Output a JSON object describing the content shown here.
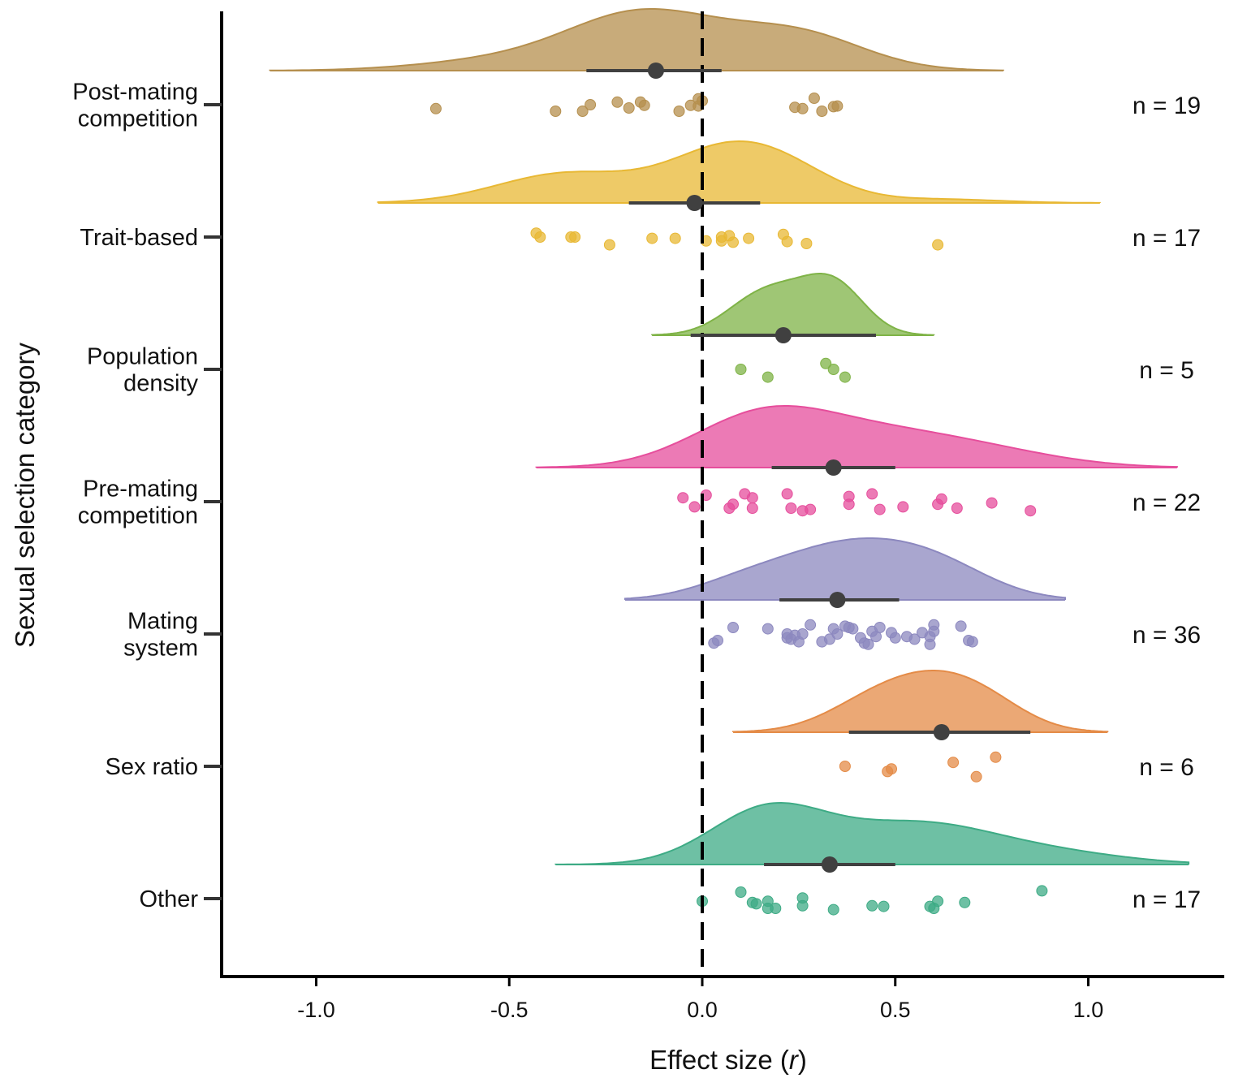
{
  "chart_data": {
    "type": "raincloud",
    "xlabel_main": "Effect size (",
    "xlabel_italic": "r",
    "xlabel_close": ")",
    "ylabel": "Sexual selection category",
    "xlim": [
      -1.25,
      1.38
    ],
    "x_ticks": [
      {
        "value": -1.0,
        "label": "-1.0"
      },
      {
        "value": -0.5,
        "label": "-0.5"
      },
      {
        "value": 0.0,
        "label": "0.0"
      },
      {
        "value": 0.5,
        "label": "0.5"
      },
      {
        "value": 1.0,
        "label": "1.0"
      }
    ],
    "reference_line": {
      "x": 0,
      "style": "dashed"
    },
    "categories": [
      {
        "label_lines": [
          "Post-mating",
          "competition"
        ],
        "n_label": "n = 19",
        "color": "#b58f4e",
        "mean": -0.12,
        "ci": [
          -0.3,
          0.05
        ],
        "density_range": [
          -1.12,
          0.78
        ],
        "density_peaks": [
          [
            -0.15,
            1.0,
            0.2
          ],
          [
            0.25,
            0.6,
            0.17
          ],
          [
            -0.55,
            0.15,
            0.2
          ]
        ],
        "points": [
          [
            -0.69,
            0.3
          ],
          [
            -0.38,
            0.5
          ],
          [
            -0.31,
            0.5
          ],
          [
            -0.29,
            0.0
          ],
          [
            -0.22,
            -0.2
          ],
          [
            -0.19,
            0.25
          ],
          [
            -0.16,
            -0.2
          ],
          [
            -0.15,
            0.05
          ],
          [
            -0.06,
            0.5
          ],
          [
            -0.03,
            0.05
          ],
          [
            -0.01,
            0.1
          ],
          [
            -0.01,
            -0.45
          ],
          [
            0.0,
            -0.3
          ],
          [
            0.24,
            0.2
          ],
          [
            0.26,
            0.3
          ],
          [
            0.29,
            -0.5
          ],
          [
            0.31,
            0.5
          ],
          [
            0.34,
            0.15
          ],
          [
            0.35,
            0.1
          ]
        ]
      },
      {
        "label_lines": [
          "Trait-based"
        ],
        "n_label": "n = 17",
        "color": "#e8b834",
        "mean": -0.02,
        "ci": [
          -0.19,
          0.15
        ],
        "density_range": [
          -0.84,
          1.03
        ],
        "density_peaks": [
          [
            -0.35,
            0.65,
            0.18
          ],
          [
            0.05,
            1.0,
            0.15
          ],
          [
            0.22,
            0.55,
            0.14
          ],
          [
            0.62,
            0.08,
            0.15
          ]
        ],
        "points": [
          [
            -0.43,
            -0.3
          ],
          [
            -0.42,
            0.0
          ],
          [
            -0.34,
            0.0
          ],
          [
            -0.33,
            0.0
          ],
          [
            -0.24,
            0.6
          ],
          [
            -0.13,
            0.1
          ],
          [
            -0.07,
            0.1
          ],
          [
            0.01,
            0.3
          ],
          [
            0.05,
            0.0
          ],
          [
            0.05,
            0.3
          ],
          [
            0.07,
            -0.1
          ],
          [
            0.08,
            0.4
          ],
          [
            0.12,
            0.1
          ],
          [
            0.21,
            -0.2
          ],
          [
            0.22,
            0.35
          ],
          [
            0.27,
            0.5
          ],
          [
            0.61,
            0.6
          ]
        ]
      },
      {
        "label_lines": [
          "Population",
          "density"
        ],
        "n_label": "n = 5",
        "color": "#7fb347",
        "mean": 0.21,
        "ci": [
          -0.03,
          0.45
        ],
        "density_range": [
          -0.13,
          0.6
        ],
        "density_peaks": [
          [
            0.14,
            0.62,
            0.09
          ],
          [
            0.34,
            1.0,
            0.08
          ],
          [
            0.22,
            0.35,
            0.08
          ]
        ],
        "points": [
          [
            0.1,
            0.0
          ],
          [
            0.17,
            0.6
          ],
          [
            0.32,
            -0.45
          ],
          [
            0.34,
            0.0
          ],
          [
            0.37,
            0.6
          ]
        ]
      },
      {
        "label_lines": [
          "Pre-mating",
          "competition"
        ],
        "n_label": "n = 22",
        "color": "#e64e9c",
        "mean": 0.34,
        "ci": [
          0.18,
          0.5
        ],
        "density_range": [
          -0.43,
          1.23
        ],
        "density_peaks": [
          [
            0.15,
            1.0,
            0.18
          ],
          [
            0.45,
            0.65,
            0.22
          ],
          [
            0.75,
            0.25,
            0.2
          ]
        ],
        "points": [
          [
            -0.05,
            -0.3
          ],
          [
            -0.02,
            0.4
          ],
          [
            0.01,
            -0.5
          ],
          [
            0.07,
            0.5
          ],
          [
            0.08,
            0.2
          ],
          [
            0.11,
            -0.6
          ],
          [
            0.13,
            0.5
          ],
          [
            0.13,
            -0.3
          ],
          [
            0.22,
            -0.6
          ],
          [
            0.23,
            0.5
          ],
          [
            0.26,
            0.7
          ],
          [
            0.28,
            0.6
          ],
          [
            0.38,
            0.2
          ],
          [
            0.38,
            -0.4
          ],
          [
            0.44,
            -0.6
          ],
          [
            0.46,
            0.6
          ],
          [
            0.52,
            0.4
          ],
          [
            0.61,
            0.2
          ],
          [
            0.62,
            -0.2
          ],
          [
            0.66,
            0.5
          ],
          [
            0.75,
            0.1
          ],
          [
            0.85,
            0.7
          ]
        ]
      },
      {
        "label_lines": [
          "Mating",
          "system"
        ],
        "n_label": "n = 36",
        "color": "#8c88bf",
        "mean": 0.35,
        "ci": [
          0.2,
          0.51
        ],
        "density_range": [
          -0.2,
          0.94
        ],
        "density_peaks": [
          [
            0.38,
            1.0,
            0.18
          ],
          [
            0.62,
            0.45,
            0.14
          ],
          [
            0.1,
            0.25,
            0.13
          ]
        ],
        "points": [
          [
            0.03,
            0.7
          ],
          [
            0.04,
            0.5
          ],
          [
            0.08,
            -0.5
          ],
          [
            0.17,
            -0.4
          ],
          [
            0.22,
            0.3
          ],
          [
            0.22,
            0.0
          ],
          [
            0.23,
            0.4
          ],
          [
            0.24,
            0.1
          ],
          [
            0.25,
            0.6
          ],
          [
            0.26,
            0.0
          ],
          [
            0.28,
            -0.7
          ],
          [
            0.31,
            0.6
          ],
          [
            0.33,
            0.4
          ],
          [
            0.34,
            -0.4
          ],
          [
            0.35,
            0.0
          ],
          [
            0.37,
            -0.6
          ],
          [
            0.38,
            -0.5
          ],
          [
            0.39,
            -0.4
          ],
          [
            0.41,
            0.3
          ],
          [
            0.42,
            0.7
          ],
          [
            0.43,
            0.8
          ],
          [
            0.44,
            -0.2
          ],
          [
            0.45,
            0.2
          ],
          [
            0.46,
            -0.5
          ],
          [
            0.49,
            -0.1
          ],
          [
            0.5,
            0.3
          ],
          [
            0.53,
            0.2
          ],
          [
            0.55,
            0.4
          ],
          [
            0.57,
            -0.1
          ],
          [
            0.59,
            0.2
          ],
          [
            0.59,
            0.8
          ],
          [
            0.6,
            -0.7
          ],
          [
            0.6,
            -0.2
          ],
          [
            0.67,
            -0.6
          ],
          [
            0.69,
            0.5
          ],
          [
            0.7,
            0.6
          ]
        ]
      },
      {
        "label_lines": [
          "Sex ratio"
        ],
        "n_label": "n = 6",
        "color": "#e48b47",
        "mean": 0.62,
        "ci": [
          0.38,
          0.85
        ],
        "density_range": [
          0.08,
          1.05
        ],
        "density_peaks": [
          [
            0.47,
            0.95,
            0.13
          ],
          [
            0.7,
            1.0,
            0.12
          ],
          [
            0.58,
            0.3,
            0.1
          ]
        ],
        "points": [
          [
            0.37,
            0.0
          ],
          [
            0.48,
            0.4
          ],
          [
            0.49,
            0.2
          ],
          [
            0.65,
            -0.3
          ],
          [
            0.71,
            0.8
          ],
          [
            0.76,
            -0.7
          ]
        ]
      },
      {
        "label_lines": [
          "Other"
        ],
        "n_label": "n = 17",
        "color": "#3eab85",
        "mean": 0.33,
        "ci": [
          0.16,
          0.5
        ],
        "density_range": [
          -0.38,
          1.26
        ],
        "density_peaks": [
          [
            0.17,
            1.0,
            0.15
          ],
          [
            0.55,
            0.72,
            0.2
          ],
          [
            0.9,
            0.2,
            0.2
          ]
        ],
        "points": [
          [
            0.0,
            0.2
          ],
          [
            0.1,
            -0.5
          ],
          [
            0.13,
            0.3
          ],
          [
            0.14,
            0.4
          ],
          [
            0.17,
            0.75
          ],
          [
            0.17,
            0.2
          ],
          [
            0.19,
            0.75
          ],
          [
            0.26,
            0.55
          ],
          [
            0.26,
            -0.05
          ],
          [
            0.34,
            0.85
          ],
          [
            0.44,
            0.55
          ],
          [
            0.47,
            0.6
          ],
          [
            0.59,
            0.6
          ],
          [
            0.6,
            0.75
          ],
          [
            0.61,
            0.2
          ],
          [
            0.68,
            0.3
          ],
          [
            0.88,
            -0.6
          ]
        ]
      }
    ]
  }
}
